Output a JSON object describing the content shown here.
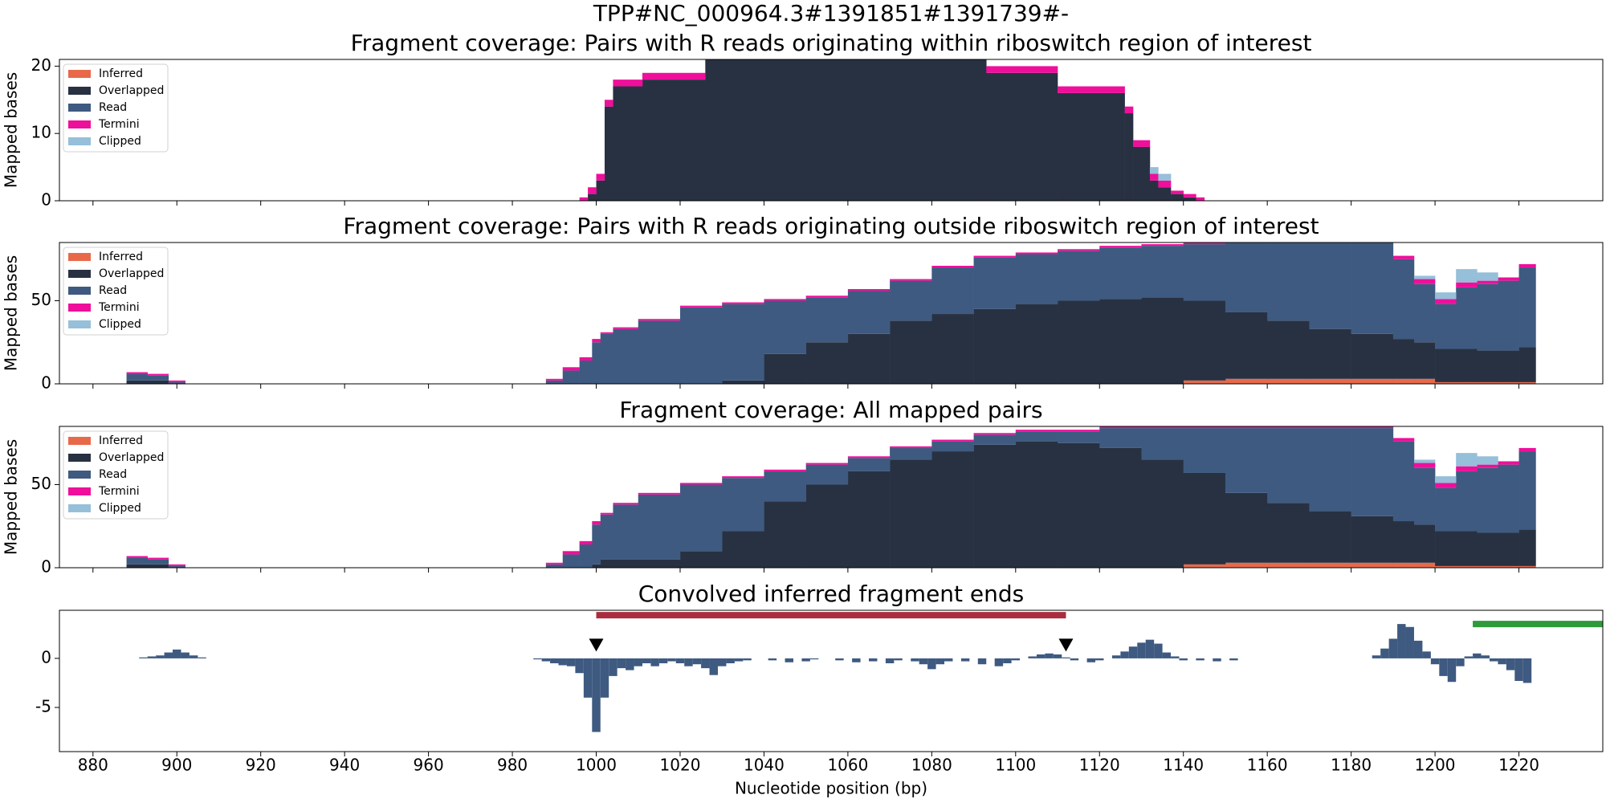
{
  "title": "TPP#NC_000964.3#1391851#1391739#-",
  "chart_data": [
    {
      "type": "histogram",
      "stacked": true,
      "title": "Fragment coverage: Pairs with R reads originating within riboswitch region of interest",
      "ylabel": "Mapped bases",
      "xlim": [
        872,
        1240
      ],
      "xticks": [
        880,
        900,
        920,
        940,
        960,
        980,
        1000,
        1020,
        1040,
        1060,
        1080,
        1100,
        1120,
        1140,
        1160,
        1180,
        1200,
        1220
      ],
      "ylim": [
        0,
        21
      ],
      "yticks": [
        0,
        10,
        20
      ],
      "legend": "upper left",
      "bins": [
        996,
        998,
        1000,
        1002,
        1004,
        1011,
        1026,
        1093,
        1110,
        1126,
        1128,
        1132,
        1134,
        1137,
        1140,
        1143,
        1145
      ],
      "series": [
        {
          "name": "Inferred",
          "color": "#e8694a",
          "values": [
            0,
            0,
            0,
            0,
            0,
            0,
            0,
            0,
            0,
            0,
            0,
            0,
            0,
            0,
            0,
            0
          ]
        },
        {
          "name": "Overlapped",
          "color": "#283142",
          "values": [
            0,
            1,
            3,
            14,
            17,
            18,
            22,
            19,
            16,
            13,
            8,
            3,
            2,
            1,
            0.5,
            0
          ]
        },
        {
          "name": "Read",
          "color": "#3e5a80",
          "values": [
            0,
            0,
            0,
            0,
            0,
            0,
            0,
            0,
            0,
            0,
            0,
            0,
            0,
            0,
            0,
            0
          ]
        },
        {
          "name": "Termini",
          "color": "#ee0f9b",
          "values": [
            0.5,
            1,
            1,
            1,
            1,
            1,
            1,
            1,
            1,
            1,
            1,
            1,
            1,
            0.5,
            0.5,
            0.5
          ]
        },
        {
          "name": "Clipped",
          "color": "#96bfd9",
          "values": [
            0,
            0,
            0,
            0,
            0,
            0,
            0,
            0,
            0,
            0,
            0,
            1,
            1,
            0,
            0,
            0
          ]
        }
      ]
    },
    {
      "type": "histogram",
      "stacked": true,
      "title": "Fragment coverage: Pairs with R reads originating outside riboswitch region of interest",
      "ylabel": "Mapped bases",
      "xlim": [
        872,
        1240
      ],
      "xticks": [
        880,
        900,
        920,
        940,
        960,
        980,
        1000,
        1020,
        1040,
        1060,
        1080,
        1100,
        1120,
        1140,
        1160,
        1180,
        1200,
        1220
      ],
      "ylim": [
        0,
        85
      ],
      "yticks": [
        0,
        50
      ],
      "legend": "upper left",
      "bins": [
        888,
        893,
        898,
        902,
        906,
        988,
        992,
        996,
        999,
        1001,
        1004,
        1010,
        1020,
        1030,
        1040,
        1050,
        1060,
        1070,
        1080,
        1090,
        1100,
        1110,
        1120,
        1130,
        1140,
        1150,
        1160,
        1170,
        1180,
        1190,
        1195,
        1200,
        1205,
        1210,
        1215,
        1220,
        1224
      ],
      "series": [
        {
          "name": "Inferred",
          "color": "#e8694a",
          "values": [
            0,
            0,
            0,
            0,
            0,
            0,
            0,
            0,
            0,
            0,
            0,
            0,
            0,
            0,
            0,
            0,
            0,
            0,
            0,
            0,
            0,
            0,
            0,
            0,
            2,
            3,
            3,
            3,
            3,
            3,
            3,
            1,
            1,
            1,
            1,
            1
          ]
        },
        {
          "name": "Overlapped",
          "color": "#283142",
          "values": [
            2,
            2,
            0,
            0,
            0,
            0,
            0,
            0,
            0,
            0,
            0,
            0,
            0,
            2,
            18,
            25,
            30,
            38,
            42,
            45,
            48,
            50,
            51,
            52,
            48,
            40,
            35,
            30,
            27,
            24,
            22,
            20,
            20,
            19,
            19,
            21
          ]
        },
        {
          "name": "Read",
          "color": "#3e5a80",
          "values": [
            4,
            3,
            1,
            0,
            0,
            2,
            8,
            14,
            25,
            30,
            33,
            38,
            46,
            46,
            32,
            27,
            26,
            24,
            28,
            31,
            30,
            30,
            31,
            31,
            34,
            43,
            48,
            53,
            56,
            48,
            35,
            27,
            37,
            40,
            42,
            48
          ]
        },
        {
          "name": "Termini",
          "color": "#ee0f9b",
          "values": [
            1,
            1,
            1,
            0,
            0,
            1,
            2,
            2,
            2,
            1,
            1,
            1,
            1,
            1,
            1,
            1,
            1,
            1,
            1,
            1,
            1,
            1,
            1,
            1,
            1,
            1,
            1,
            1,
            1,
            2,
            3,
            3,
            3,
            2,
            2,
            2
          ]
        },
        {
          "name": "Clipped",
          "color": "#96bfd9",
          "values": [
            0,
            0,
            0,
            0,
            0,
            0,
            0,
            0,
            0,
            0,
            0,
            0,
            0,
            0,
            0,
            0,
            0,
            0,
            0,
            0,
            0,
            0,
            0,
            0,
            0,
            0,
            0,
            0,
            0,
            0,
            2,
            4,
            8,
            5,
            0,
            0
          ]
        }
      ]
    },
    {
      "type": "histogram",
      "stacked": true,
      "title": "Fragment coverage: All mapped pairs",
      "ylabel": "Mapped bases",
      "xlim": [
        872,
        1240
      ],
      "xticks": [
        880,
        900,
        920,
        940,
        960,
        980,
        1000,
        1020,
        1040,
        1060,
        1080,
        1100,
        1120,
        1140,
        1160,
        1180,
        1200,
        1220
      ],
      "ylim": [
        0,
        85
      ],
      "yticks": [
        0,
        50
      ],
      "legend": "upper left",
      "bins": [
        888,
        893,
        898,
        902,
        906,
        988,
        992,
        996,
        999,
        1001,
        1004,
        1010,
        1020,
        1030,
        1040,
        1050,
        1060,
        1070,
        1080,
        1090,
        1100,
        1110,
        1120,
        1130,
        1140,
        1150,
        1160,
        1170,
        1180,
        1190,
        1195,
        1200,
        1205,
        1210,
        1215,
        1220,
        1224
      ],
      "series": [
        {
          "name": "Inferred",
          "color": "#e8694a",
          "values": [
            0,
            0,
            0,
            0,
            0,
            0,
            0,
            0,
            0,
            0,
            0,
            0,
            0,
            0,
            0,
            0,
            0,
            0,
            0,
            0,
            0,
            0,
            0,
            0,
            2,
            3,
            3,
            3,
            3,
            3,
            3,
            1,
            1,
            1,
            1,
            1
          ]
        },
        {
          "name": "Overlapped",
          "color": "#283142",
          "values": [
            2,
            2,
            0,
            0,
            0,
            0,
            0,
            0,
            2,
            5,
            5,
            5,
            10,
            22,
            40,
            50,
            58,
            65,
            70,
            74,
            76,
            75,
            72,
            65,
            55,
            42,
            36,
            31,
            28,
            25,
            23,
            21,
            21,
            20,
            20,
            22
          ]
        },
        {
          "name": "Read",
          "color": "#3e5a80",
          "values": [
            4,
            3,
            1,
            0,
            0,
            2,
            8,
            14,
            24,
            27,
            33,
            39,
            40,
            32,
            18,
            12,
            8,
            7,
            6,
            6,
            6,
            7,
            12,
            19,
            27,
            39,
            45,
            50,
            53,
            48,
            34,
            26,
            36,
            39,
            41,
            47
          ]
        },
        {
          "name": "Termini",
          "color": "#ee0f9b",
          "values": [
            1,
            1,
            1,
            0,
            0,
            1,
            2,
            2,
            2,
            1,
            1,
            1,
            1,
            1,
            1,
            1,
            1,
            1,
            1,
            1,
            1,
            1,
            1,
            1,
            1,
            1,
            1,
            1,
            1,
            2,
            3,
            3,
            3,
            2,
            2,
            2
          ]
        },
        {
          "name": "Clipped",
          "color": "#96bfd9",
          "values": [
            0,
            0,
            0,
            0,
            0,
            0,
            0,
            0,
            0,
            0,
            0,
            0,
            0,
            0,
            0,
            0,
            0,
            0,
            0,
            0,
            0,
            0,
            0,
            0,
            0,
            0,
            0,
            0,
            0,
            0,
            2,
            4,
            8,
            5,
            0,
            0
          ]
        }
      ]
    },
    {
      "type": "bar",
      "title": "Convolved inferred fragment ends",
      "xlabel": "Nucleotide position (bp)",
      "xlim": [
        872,
        1240
      ],
      "xticks": [
        880,
        900,
        920,
        940,
        960,
        980,
        1000,
        1020,
        1040,
        1060,
        1080,
        1100,
        1120,
        1140,
        1160,
        1180,
        1200,
        1220
      ],
      "ylim": [
        -9.5,
        4.9
      ],
      "yticks": [
        -5,
        0
      ],
      "color": "#3e5a80",
      "x": [
        892,
        894,
        896,
        898,
        900,
        902,
        904,
        906,
        986,
        988,
        990,
        992,
        994,
        996,
        998,
        1000,
        1002,
        1004,
        1006,
        1008,
        1010,
        1012,
        1014,
        1016,
        1018,
        1020,
        1022,
        1024,
        1026,
        1028,
        1030,
        1032,
        1034,
        1036,
        1042,
        1046,
        1050,
        1052,
        1058,
        1062,
        1066,
        1070,
        1072,
        1076,
        1078,
        1080,
        1082,
        1084,
        1088,
        1092,
        1096,
        1098,
        1100,
        1104,
        1106,
        1108,
        1110,
        1112,
        1114,
        1118,
        1120,
        1124,
        1126,
        1128,
        1130,
        1132,
        1134,
        1136,
        1138,
        1140,
        1144,
        1148,
        1152,
        1186,
        1188,
        1190,
        1192,
        1194,
        1196,
        1198,
        1200,
        1202,
        1204,
        1206,
        1208,
        1210,
        1212,
        1214,
        1216,
        1218,
        1220,
        1222
      ],
      "values": [
        0.1,
        0.2,
        0.3,
        0.6,
        0.9,
        0.6,
        0.3,
        0.1,
        -0.1,
        -0.3,
        -0.5,
        -0.7,
        -0.8,
        -1.5,
        -4,
        -7.5,
        -4,
        -1.8,
        -1,
        -1.2,
        -0.8,
        -0.5,
        -0.8,
        -0.5,
        -0.3,
        -0.5,
        -0.8,
        -0.6,
        -1,
        -1.7,
        -0.8,
        -0.5,
        -0.3,
        -0.2,
        -0.2,
        -0.4,
        -0.3,
        -0.1,
        -0.2,
        -0.4,
        -0.3,
        -0.5,
        -0.2,
        -0.3,
        -0.6,
        -1.1,
        -0.6,
        -0.3,
        -0.3,
        -0.6,
        -0.8,
        -0.5,
        -0.2,
        0.2,
        0.4,
        0.5,
        0.4,
        0.1,
        -0.2,
        -0.4,
        -0.2,
        0.3,
        0.7,
        1.2,
        1.6,
        1.9,
        1.5,
        0.6,
        0.2,
        -0.2,
        -0.2,
        -0.3,
        -0.2,
        0.3,
        1,
        2,
        3.5,
        3.2,
        1.8,
        0.7,
        -0.6,
        -1.8,
        -2.4,
        -0.8,
        0.2,
        0.5,
        0.3,
        -0.3,
        -0.6,
        -1.2,
        -2.3,
        -2.5
      ],
      "regions": [
        {
          "start": 1000,
          "end": 1112,
          "y": 4.4,
          "color": "#a92d3f"
        },
        {
          "start": 1209,
          "end": 1245,
          "y": 3.5,
          "color": "#2e9a3a"
        }
      ],
      "markers": [
        {
          "x": 1000,
          "y": 0.7
        },
        {
          "x": 1112,
          "y": 0.7
        }
      ]
    }
  ]
}
